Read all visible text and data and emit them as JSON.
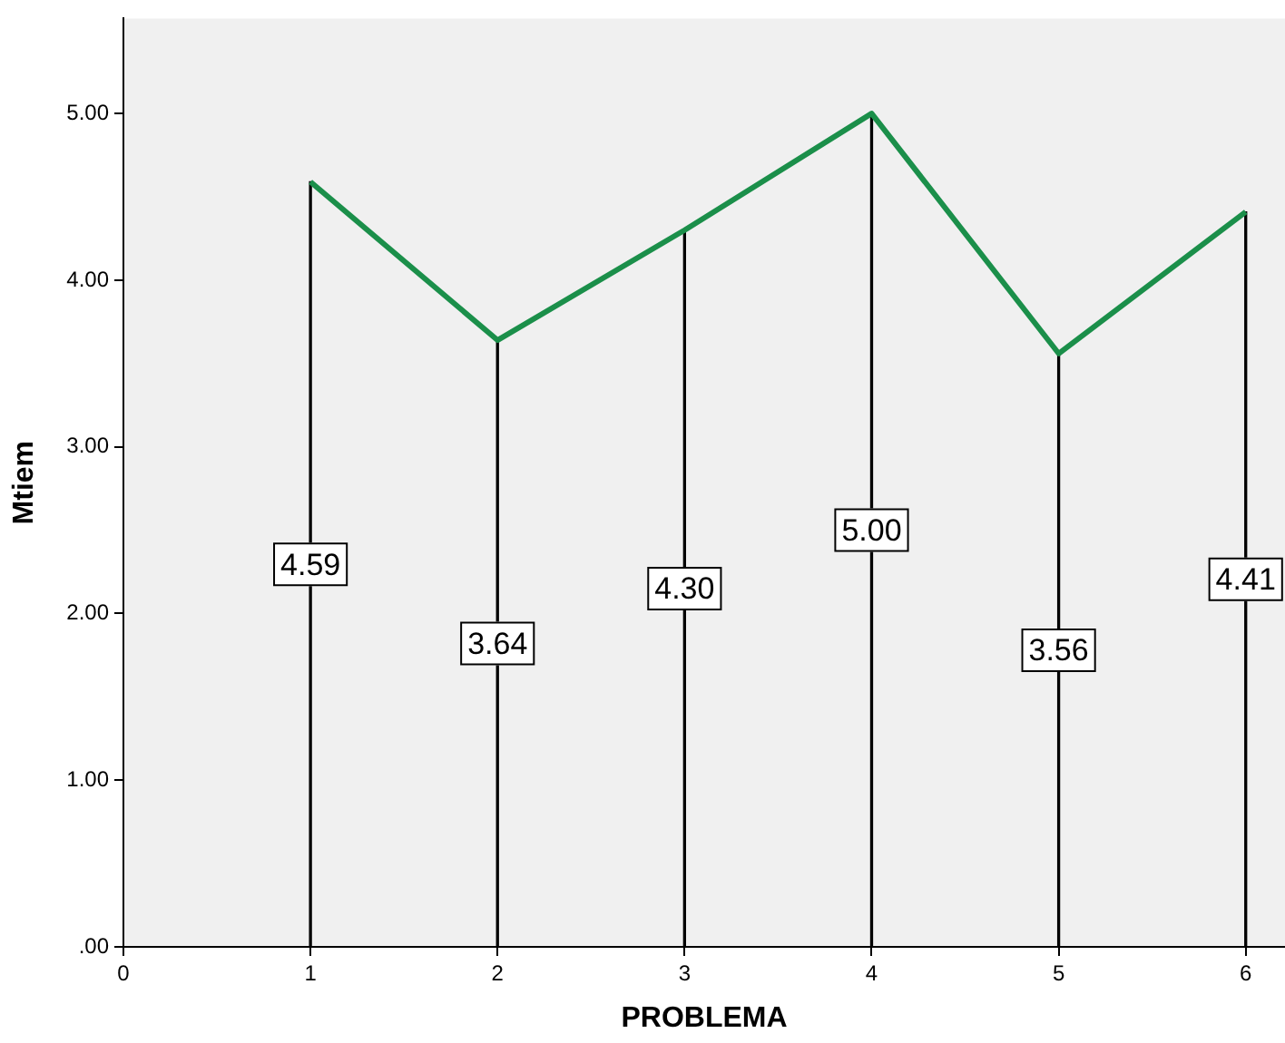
{
  "chart_data": {
    "type": "line",
    "xlabel": "PROBLEMA",
    "ylabel": "Mtiem",
    "x": [
      1,
      2,
      3,
      4,
      5,
      6
    ],
    "series": [
      {
        "type": "bar",
        "color": "#000000",
        "values": [
          4.59,
          3.64,
          4.3,
          5.0,
          3.56,
          4.41
        ],
        "value_labels": [
          "4.59",
          "3.64",
          "4.30",
          "5.00",
          "3.56",
          "4.41"
        ]
      },
      {
        "color": "#1b8f4a",
        "values": [
          4.59,
          3.64,
          4.3,
          5.0,
          3.56,
          4.41
        ]
      }
    ],
    "xlim": [
      0,
      6.21
    ],
    "xticks": [
      0,
      1,
      2,
      3,
      4,
      5,
      6
    ],
    "ylim": [
      0,
      5.57
    ],
    "yticks": [
      {
        "value": 0,
        "label": ".00"
      },
      {
        "value": 1,
        "label": "1.00"
      },
      {
        "value": 2,
        "label": "2.00"
      },
      {
        "value": 3,
        "label": "3.00"
      },
      {
        "value": 4,
        "label": "4.00"
      },
      {
        "value": 5,
        "label": "5.00"
      }
    ],
    "grid": false,
    "legend": false,
    "marker": "none",
    "line_style": "solid"
  }
}
